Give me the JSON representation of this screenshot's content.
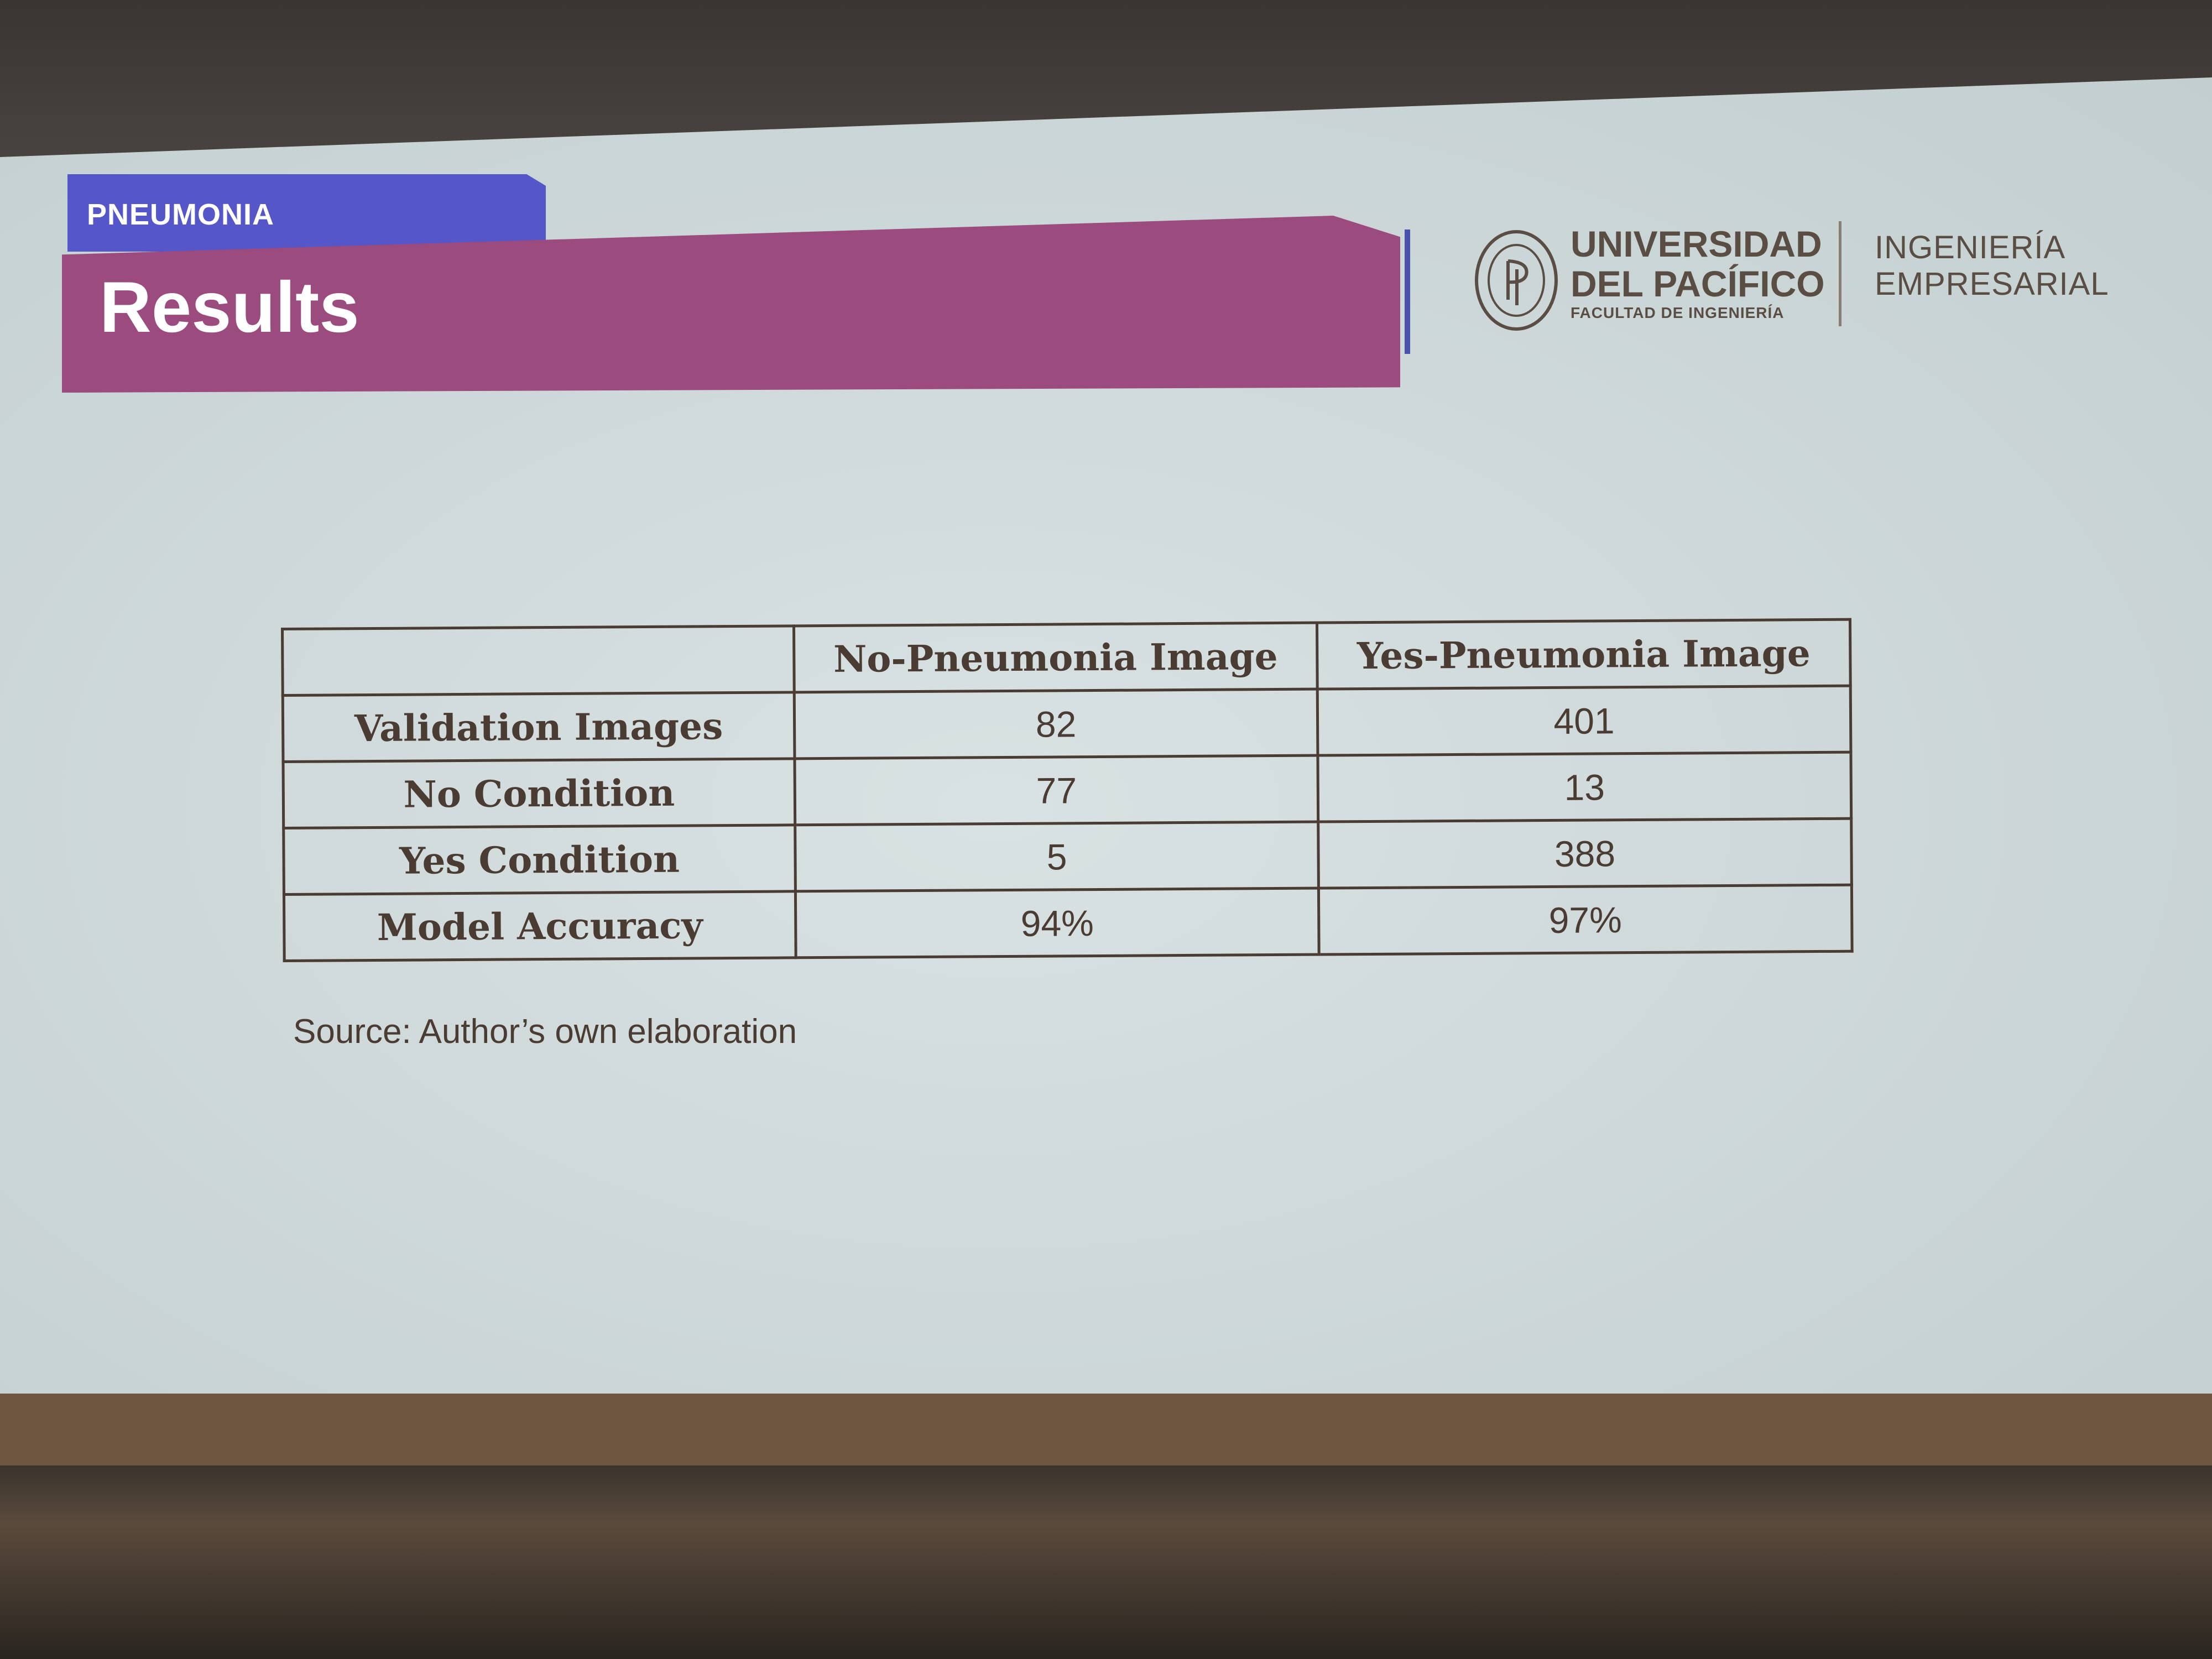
{
  "slide": {
    "tag": "PNEUMONIA",
    "title": "Results",
    "logo": {
      "line1": "UNIVERSIDAD",
      "line2": "DEL PACÍFICO",
      "line3": "FACULTAD DE INGENIERÍA"
    },
    "department": {
      "line1": "INGENIERÍA",
      "line2": "EMPRESARIAL"
    },
    "table": {
      "headers": [
        "",
        "No-Pneumonia Image",
        "Yes-Pneumonia Image"
      ],
      "rows": [
        {
          "label": "Validation Images",
          "no": "82",
          "yes": "401"
        },
        {
          "label": "No Condition",
          "no": "77",
          "yes": "13"
        },
        {
          "label": "Yes Condition",
          "no": "5",
          "yes": "388"
        },
        {
          "label": "Model Accuracy",
          "no": "94%",
          "yes": "97%"
        }
      ]
    },
    "source": "Source: Author’s own elaboration"
  },
  "colors": {
    "tag": "#5557c9",
    "banner": "#9b4b7e",
    "text": "#4a3c33"
  }
}
